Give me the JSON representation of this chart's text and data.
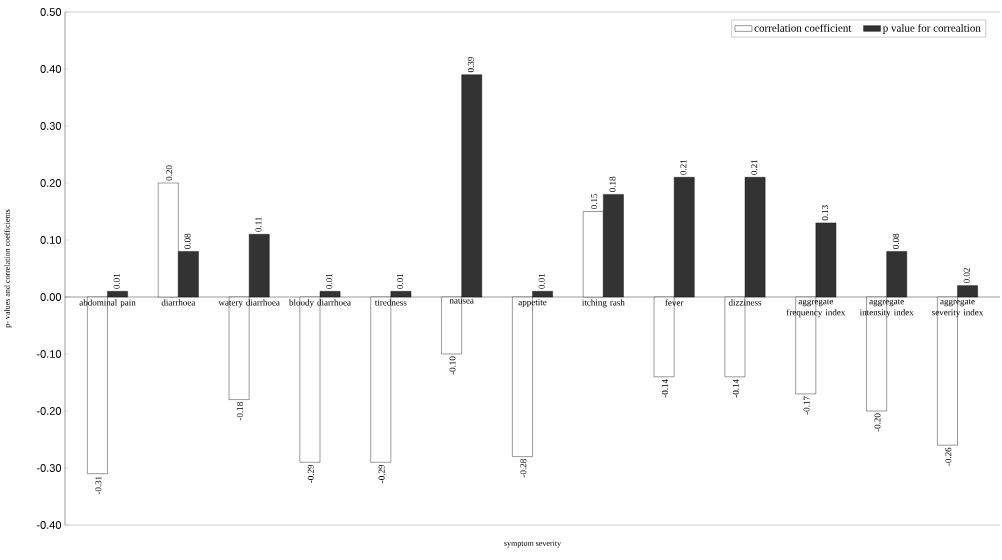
{
  "chart_data": {
    "type": "bar",
    "xlabel": "symptom severity",
    "ylabel": "p- values and correlation coefficients",
    "categories": [
      "abdominal pain",
      "diarrhoea",
      "watery diarrhoea",
      "bloody diarrhoea",
      "tiredness",
      "nausea",
      "appetite",
      "itching rash",
      "fever",
      "dizziness",
      "aggregate frequency index",
      "aggregate intensity index",
      "aggregate severity index"
    ],
    "series": [
      {
        "name": "correlation coefficient",
        "color": "#ffffff",
        "values": [
          -0.31,
          0.2,
          -0.18,
          -0.29,
          -0.29,
          -0.1,
          -0.28,
          0.15,
          -0.14,
          -0.14,
          -0.17,
          -0.2,
          -0.26
        ],
        "value_labels": [
          "-0.31",
          "0.20",
          "-0.18",
          "-0.29",
          "-0.29",
          "-0.10",
          "-0.28",
          "0.15",
          "-0.14",
          "-0.14",
          "-0.17",
          "-0.20",
          "-0.26"
        ]
      },
      {
        "name": "p value for correaltion",
        "color": "#333333",
        "values": [
          0.01,
          0.08,
          0.11,
          0.01,
          0.01,
          0.39,
          0.01,
          0.18,
          0.21,
          0.21,
          0.13,
          0.08,
          0.02
        ],
        "value_labels": [
          "0.01",
          "0.08",
          "0.11",
          "0.01",
          "0.01",
          "0.39",
          "0.01",
          "0.18",
          "0.21",
          "0.21",
          "0.13",
          "0.08",
          "0.02"
        ]
      }
    ],
    "ylim": [
      -0.4,
      0.5
    ],
    "yticks": [
      {
        "value": -0.4,
        "label": "-0.40"
      },
      {
        "value": -0.3,
        "label": "-0.30"
      },
      {
        "value": -0.2,
        "label": "-0.20"
      },
      {
        "value": -0.1,
        "label": "-0.10"
      },
      {
        "value": 0,
        "label": "0.00"
      },
      {
        "value": 0.1,
        "label": "0.10"
      },
      {
        "value": 0.2,
        "label": "0.20"
      },
      {
        "value": 0.3,
        "label": "0.30"
      },
      {
        "value": 0.4,
        "label": "0.40"
      },
      {
        "value": 0.5,
        "label": "0.50"
      }
    ],
    "grid": false,
    "legend": "top right"
  }
}
